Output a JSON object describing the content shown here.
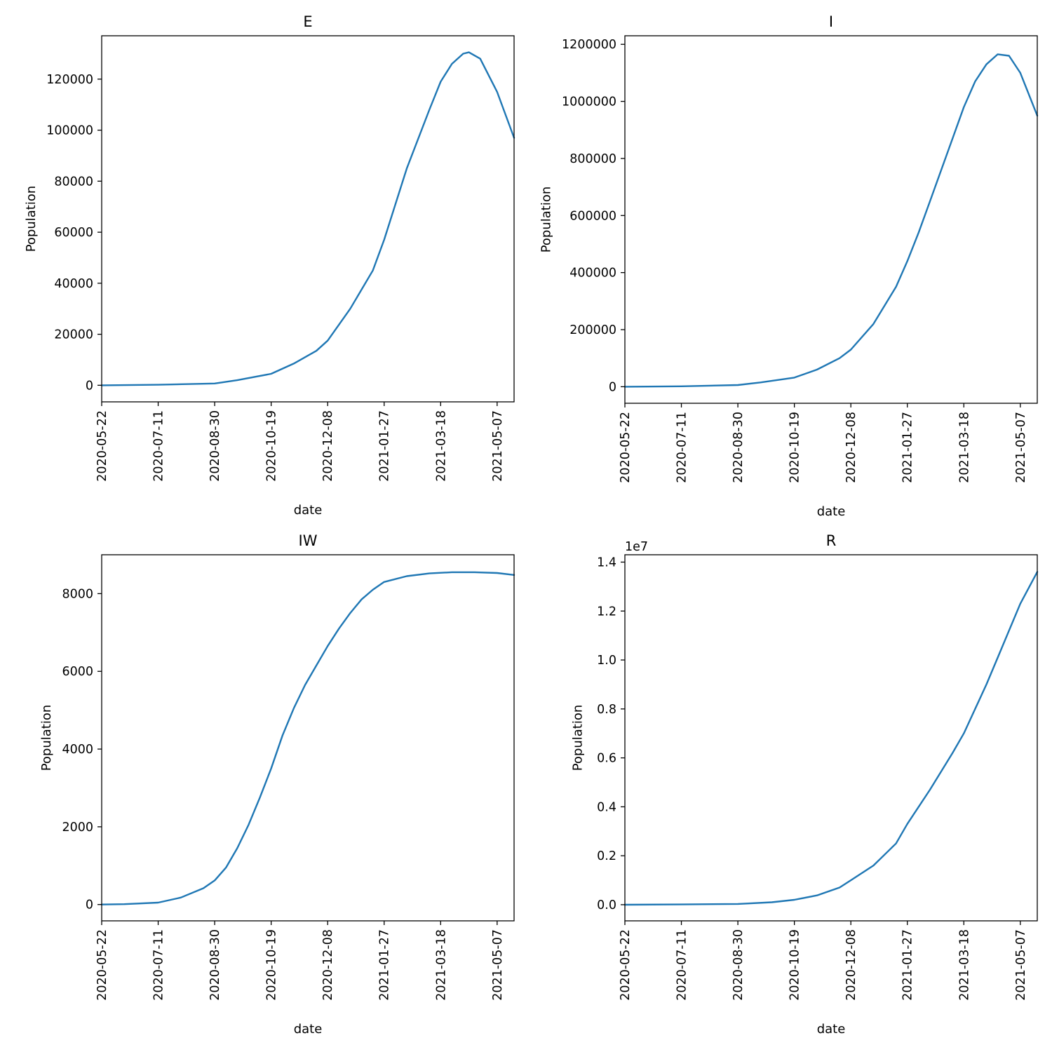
{
  "colors": {
    "series": "#1f77b4",
    "axes": "#000000",
    "background": "#ffffff"
  },
  "chart_data": [
    {
      "type": "line",
      "title": "E",
      "xlabel": "date",
      "ylabel": "Population",
      "y_offset_label": "",
      "xlim": [
        "2020-05-22",
        "2021-05-22"
      ],
      "ylim": [
        -6500,
        137000
      ],
      "x_ticks": [
        "2020-05-22",
        "2020-07-11",
        "2020-08-30",
        "2020-10-19",
        "2020-12-08",
        "2021-01-27",
        "2021-03-18",
        "2021-05-07"
      ],
      "y_ticks": [
        0,
        20000,
        40000,
        60000,
        80000,
        100000,
        120000
      ],
      "y_tick_labels": [
        "0",
        "20000",
        "40000",
        "60000",
        "80000",
        "100000",
        "120000"
      ],
      "grid": false,
      "series": [
        {
          "x": [
            "2020-05-22",
            "2020-07-11",
            "2020-08-30",
            "2020-09-19",
            "2020-10-19",
            "2020-11-08",
            "2020-11-28",
            "2020-12-08",
            "2020-12-28",
            "2021-01-17",
            "2021-01-27",
            "2021-02-16",
            "2021-03-08",
            "2021-03-18",
            "2021-03-28",
            "2021-04-07",
            "2021-04-12",
            "2021-04-22",
            "2021-05-07",
            "2021-05-22"
          ],
          "y": [
            0,
            200,
            700,
            2000,
            4500,
            8500,
            13500,
            17500,
            30000,
            45000,
            57000,
            85000,
            108000,
            119000,
            126000,
            130000,
            130500,
            128000,
            115000,
            97000
          ]
        }
      ]
    },
    {
      "type": "line",
      "title": "I",
      "xlabel": "date",
      "ylabel": "Population",
      "y_offset_label": "",
      "xlim": [
        "2020-05-22",
        "2021-05-22"
      ],
      "ylim": [
        -58000,
        1230000
      ],
      "x_ticks": [
        "2020-05-22",
        "2020-07-11",
        "2020-08-30",
        "2020-10-19",
        "2020-12-08",
        "2021-01-27",
        "2021-03-18",
        "2021-05-07"
      ],
      "y_ticks": [
        0,
        200000,
        400000,
        600000,
        800000,
        1000000,
        1200000
      ],
      "y_tick_labels": [
        "0",
        "200000",
        "400000",
        "600000",
        "800000",
        "1000000",
        "1200000"
      ],
      "grid": false,
      "series": [
        {
          "x": [
            "2020-05-22",
            "2020-07-11",
            "2020-08-30",
            "2020-09-19",
            "2020-10-19",
            "2020-11-08",
            "2020-11-28",
            "2020-12-08",
            "2020-12-28",
            "2021-01-17",
            "2021-01-27",
            "2021-02-06",
            "2021-02-16",
            "2021-03-08",
            "2021-03-18",
            "2021-03-28",
            "2021-04-07",
            "2021-04-17",
            "2021-04-27",
            "2021-05-07",
            "2021-05-22"
          ],
          "y": [
            0,
            1500,
            6000,
            15000,
            32000,
            60000,
            100000,
            130000,
            220000,
            350000,
            440000,
            540000,
            650000,
            870000,
            980000,
            1070000,
            1130000,
            1165000,
            1160000,
            1100000,
            950000
          ]
        }
      ]
    },
    {
      "type": "line",
      "title": "IW",
      "xlabel": "date",
      "ylabel": "Population",
      "y_offset_label": "",
      "xlim": [
        "2020-05-22",
        "2021-05-22"
      ],
      "ylim": [
        -420,
        9000
      ],
      "x_ticks": [
        "2020-05-22",
        "2020-07-11",
        "2020-08-30",
        "2020-10-19",
        "2020-12-08",
        "2021-01-27",
        "2021-03-18",
        "2021-05-07"
      ],
      "y_ticks": [
        0,
        2000,
        4000,
        6000,
        8000
      ],
      "y_tick_labels": [
        "0",
        "2000",
        "4000",
        "6000",
        "8000"
      ],
      "grid": false,
      "series": [
        {
          "x": [
            "2020-05-22",
            "2020-06-11",
            "2020-07-11",
            "2020-07-31",
            "2020-08-20",
            "2020-08-30",
            "2020-09-09",
            "2020-09-19",
            "2020-09-29",
            "2020-10-09",
            "2020-10-19",
            "2020-10-29",
            "2020-11-08",
            "2020-11-18",
            "2020-11-28",
            "2020-12-08",
            "2020-12-18",
            "2020-12-28",
            "2021-01-07",
            "2021-01-17",
            "2021-01-27",
            "2021-02-16",
            "2021-03-08",
            "2021-03-28",
            "2021-04-17",
            "2021-05-07",
            "2021-05-22"
          ],
          "y": [
            0,
            10,
            50,
            180,
            420,
            620,
            950,
            1450,
            2050,
            2750,
            3500,
            4350,
            5050,
            5650,
            6150,
            6650,
            7100,
            7500,
            7850,
            8100,
            8300,
            8450,
            8520,
            8550,
            8550,
            8530,
            8480
          ]
        }
      ]
    },
    {
      "type": "line",
      "title": "R",
      "xlabel": "date",
      "ylabel": "Population",
      "y_offset_label": "1e7",
      "xlim": [
        "2020-05-22",
        "2021-05-22"
      ],
      "ylim": [
        -0.066,
        1.43
      ],
      "x_ticks": [
        "2020-05-22",
        "2020-07-11",
        "2020-08-30",
        "2020-10-19",
        "2020-12-08",
        "2021-01-27",
        "2021-03-18",
        "2021-05-07"
      ],
      "y_ticks": [
        0.0,
        0.2,
        0.4,
        0.6,
        0.8,
        1.0,
        1.2,
        1.4
      ],
      "y_tick_labels": [
        "0.0",
        "0.2",
        "0.4",
        "0.6",
        "0.8",
        "1.0",
        "1.2",
        "1.4"
      ],
      "grid": false,
      "series": [
        {
          "x": [
            "2020-05-22",
            "2020-07-11",
            "2020-08-30",
            "2020-09-29",
            "2020-10-19",
            "2020-11-08",
            "2020-11-28",
            "2020-12-08",
            "2020-12-28",
            "2021-01-17",
            "2021-01-27",
            "2021-02-16",
            "2021-03-08",
            "2021-03-18",
            "2021-04-07",
            "2021-04-17",
            "2021-04-27",
            "2021-05-07",
            "2021-05-22"
          ],
          "y": [
            0,
            0.001,
            0.003,
            0.01,
            0.02,
            0.038,
            0.07,
            0.1,
            0.16,
            0.25,
            0.33,
            0.47,
            0.62,
            0.7,
            0.9,
            1.01,
            1.12,
            1.23,
            1.36
          ]
        }
      ]
    }
  ]
}
